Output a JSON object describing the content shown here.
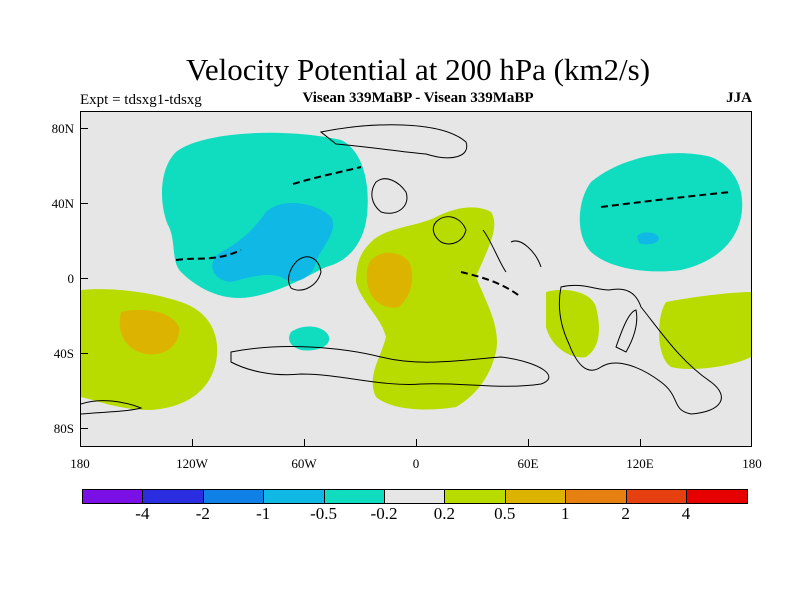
{
  "title": "Velocity Potential at 200 hPa (km2/s)",
  "subtitle_left": "Expt = tdsxg1-tdsxg",
  "subtitle_center": "Visean 339MaBP - Visean 339MaBP",
  "subtitle_right": "JJA",
  "y_labels": [
    "80N",
    "40N",
    "0",
    "40S",
    "80S"
  ],
  "x_labels": [
    "180",
    "120W",
    "60W",
    "0",
    "60E",
    "120E",
    "180"
  ],
  "colorbar": {
    "colors": [
      "#7a10e6",
      "#2a2ee0",
      "#0f80e6",
      "#10b8e6",
      "#10dcc0",
      "#e6e6e6",
      "#b8dc00",
      "#dcb400",
      "#e68010",
      "#e64010",
      "#e60000"
    ],
    "labels": [
      "-4",
      "-2",
      "-1",
      "-0.5",
      "-0.2",
      "0.2",
      "0.5",
      "1",
      "2",
      "4"
    ]
  }
}
